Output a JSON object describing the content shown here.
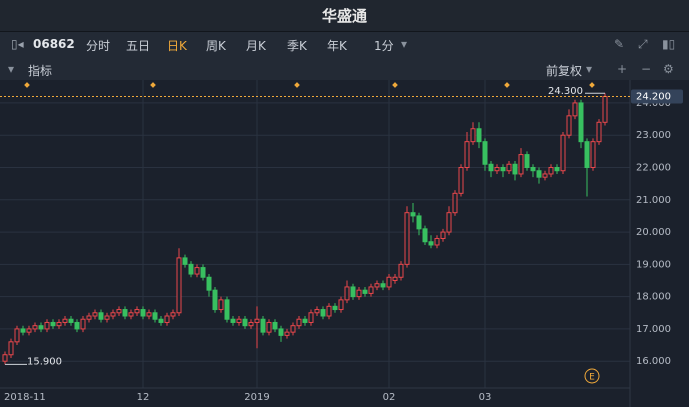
{
  "app": {
    "logo": "华盛通",
    "code": "06862",
    "periods": [
      "分时",
      "五日",
      "日K",
      "周K",
      "月K",
      "季K",
      "年K",
      "1分"
    ],
    "indicator": "指标",
    "adjust": "前复权"
  },
  "chart_data": {
    "type": "candlestick",
    "up_color": "#e8474b",
    "down_color": "#38c060",
    "categories": [
      "2018-11",
      null,
      null,
      null,
      null,
      null,
      null,
      null,
      null,
      null,
      null,
      null,
      null,
      null,
      null,
      null,
      null,
      null,
      null,
      null,
      null,
      null,
      null,
      "12",
      null,
      null,
      null,
      null,
      null,
      null,
      null,
      null,
      null,
      null,
      null,
      null,
      null,
      null,
      null,
      null,
      null,
      null,
      "2019",
      null,
      null,
      null,
      null,
      null,
      null,
      null,
      null,
      null,
      null,
      null,
      null,
      null,
      null,
      null,
      null,
      null,
      null,
      null,
      null,
      null,
      "02",
      null,
      null,
      null,
      null,
      null,
      null,
      null,
      null,
      null,
      null,
      null,
      null,
      null,
      null,
      null,
      "03",
      null,
      null,
      null,
      null,
      null,
      null,
      null,
      null,
      null,
      null,
      null,
      null,
      null,
      null,
      null,
      null,
      null,
      null,
      null,
      null
    ],
    "open": [
      16.0,
      16.2,
      16.6,
      17.0,
      16.9,
      17.0,
      17.1,
      17.0,
      17.2,
      17.1,
      17.2,
      17.3,
      17.2,
      17.0,
      17.3,
      17.4,
      17.5,
      17.3,
      17.4,
      17.5,
      17.6,
      17.4,
      17.5,
      17.6,
      17.4,
      17.5,
      17.3,
      17.2,
      17.4,
      17.5,
      19.2,
      19.0,
      18.7,
      18.9,
      18.6,
      18.2,
      17.6,
      17.9,
      17.3,
      17.2,
      17.3,
      17.1,
      17.2,
      17.3,
      16.9,
      17.2,
      17.0,
      16.8,
      16.9,
      17.1,
      17.3,
      17.2,
      17.5,
      17.6,
      17.4,
      17.7,
      17.6,
      17.9,
      18.3,
      18.0,
      18.2,
      18.1,
      18.3,
      18.4,
      18.3,
      18.5,
      18.6,
      19.0,
      20.6,
      20.5,
      20.1,
      19.7,
      19.6,
      19.8,
      20.0,
      20.6,
      21.2,
      22.0,
      22.8,
      23.2,
      22.8,
      22.1,
      21.9,
      22.0,
      21.9,
      22.1,
      21.8,
      22.4,
      22.0,
      21.9,
      21.7,
      21.8,
      22.0,
      21.9,
      23.0,
      23.6,
      24.0,
      22.8,
      22.0,
      22.8,
      23.4
    ],
    "high": [
      16.3,
      16.7,
      17.1,
      17.1,
      17.1,
      17.2,
      17.2,
      17.3,
      17.3,
      17.3,
      17.4,
      17.4,
      17.3,
      17.4,
      17.5,
      17.6,
      17.6,
      17.5,
      17.6,
      17.7,
      17.7,
      17.6,
      17.7,
      17.7,
      17.6,
      17.6,
      17.4,
      17.5,
      17.6,
      19.5,
      19.3,
      19.1,
      19.0,
      19.0,
      18.7,
      18.3,
      18.0,
      18.0,
      17.4,
      17.4,
      17.4,
      17.3,
      17.7,
      17.4,
      17.3,
      17.3,
      17.1,
      17.0,
      17.2,
      17.4,
      17.4,
      17.6,
      17.7,
      17.7,
      17.8,
      17.8,
      18.0,
      18.5,
      18.4,
      18.3,
      18.3,
      18.4,
      18.5,
      18.5,
      18.7,
      18.7,
      19.1,
      20.8,
      20.9,
      20.6,
      20.2,
      19.9,
      19.9,
      20.1,
      20.8,
      21.3,
      22.1,
      23.1,
      23.4,
      23.4,
      22.9,
      22.2,
      22.1,
      22.1,
      22.2,
      22.2,
      22.6,
      22.5,
      22.1,
      22.0,
      21.9,
      22.1,
      22.1,
      23.1,
      23.8,
      24.1,
      24.1,
      22.9,
      22.9,
      23.5,
      24.3
    ],
    "low": [
      15.9,
      16.1,
      16.5,
      16.8,
      16.8,
      16.9,
      16.9,
      16.9,
      17.0,
      17.0,
      17.1,
      17.1,
      16.9,
      16.9,
      17.2,
      17.3,
      17.2,
      17.2,
      17.3,
      17.4,
      17.3,
      17.3,
      17.4,
      17.3,
      17.3,
      17.2,
      17.1,
      17.1,
      17.3,
      17.4,
      18.9,
      18.6,
      18.6,
      18.5,
      18.0,
      17.5,
      17.5,
      17.2,
      17.1,
      17.1,
      17.0,
      17.0,
      16.4,
      16.8,
      16.8,
      16.9,
      16.6,
      16.7,
      16.8,
      17.0,
      17.1,
      17.1,
      17.4,
      17.3,
      17.3,
      17.5,
      17.5,
      17.8,
      17.9,
      17.9,
      18.0,
      18.0,
      18.2,
      18.2,
      18.2,
      18.4,
      18.5,
      18.9,
      20.3,
      19.9,
      19.6,
      19.5,
      19.5,
      19.7,
      19.9,
      20.5,
      21.1,
      21.9,
      22.7,
      22.6,
      21.9,
      21.7,
      21.8,
      21.7,
      21.8,
      21.6,
      21.7,
      21.9,
      21.7,
      21.5,
      21.6,
      21.7,
      21.8,
      21.8,
      22.9,
      23.5,
      22.6,
      21.1,
      21.9,
      22.7,
      23.3
    ],
    "close": [
      16.2,
      16.6,
      17.0,
      16.9,
      17.0,
      17.1,
      17.0,
      17.2,
      17.1,
      17.2,
      17.3,
      17.2,
      17.0,
      17.3,
      17.4,
      17.5,
      17.3,
      17.4,
      17.5,
      17.6,
      17.4,
      17.5,
      17.6,
      17.4,
      17.5,
      17.3,
      17.2,
      17.4,
      17.5,
      19.2,
      19.0,
      18.7,
      18.9,
      18.6,
      18.2,
      17.6,
      17.9,
      17.3,
      17.2,
      17.3,
      17.1,
      17.2,
      17.3,
      16.9,
      17.2,
      17.0,
      16.8,
      16.9,
      17.1,
      17.3,
      17.2,
      17.5,
      17.6,
      17.4,
      17.7,
      17.6,
      17.9,
      18.3,
      18.0,
      18.2,
      18.1,
      18.3,
      18.4,
      18.3,
      18.6,
      18.6,
      19.0,
      20.6,
      20.5,
      20.1,
      19.7,
      19.6,
      19.8,
      20.0,
      20.6,
      21.2,
      22.0,
      22.8,
      23.2,
      22.8,
      22.1,
      21.9,
      22.0,
      21.9,
      22.1,
      21.8,
      22.4,
      22.0,
      21.9,
      21.7,
      21.8,
      22.0,
      21.9,
      23.0,
      23.6,
      24.0,
      22.8,
      22.0,
      22.8,
      23.4,
      24.2
    ],
    "ylim": [
      15.17,
      24.71
    ],
    "yticks": [
      {
        "value": 16,
        "label": "16.000"
      },
      {
        "value": 17,
        "label": "17.000"
      },
      {
        "value": 18,
        "label": "18.000"
      },
      {
        "value": 19,
        "label": "19.000"
      },
      {
        "value": 20,
        "label": "20.000"
      },
      {
        "value": 21,
        "label": "21.000"
      },
      {
        "value": 22,
        "label": "22.000"
      },
      {
        "value": 23,
        "label": "23.000"
      },
      {
        "value": 24,
        "label": "24.000"
      }
    ],
    "grid": true,
    "max_marker": {
      "value": 24.3,
      "label": "24.300"
    },
    "min_marker": {
      "value": 15.9,
      "label": "15.900"
    },
    "last_price": {
      "value": 24.2,
      "label": "24.200"
    },
    "event_icon": "E"
  }
}
